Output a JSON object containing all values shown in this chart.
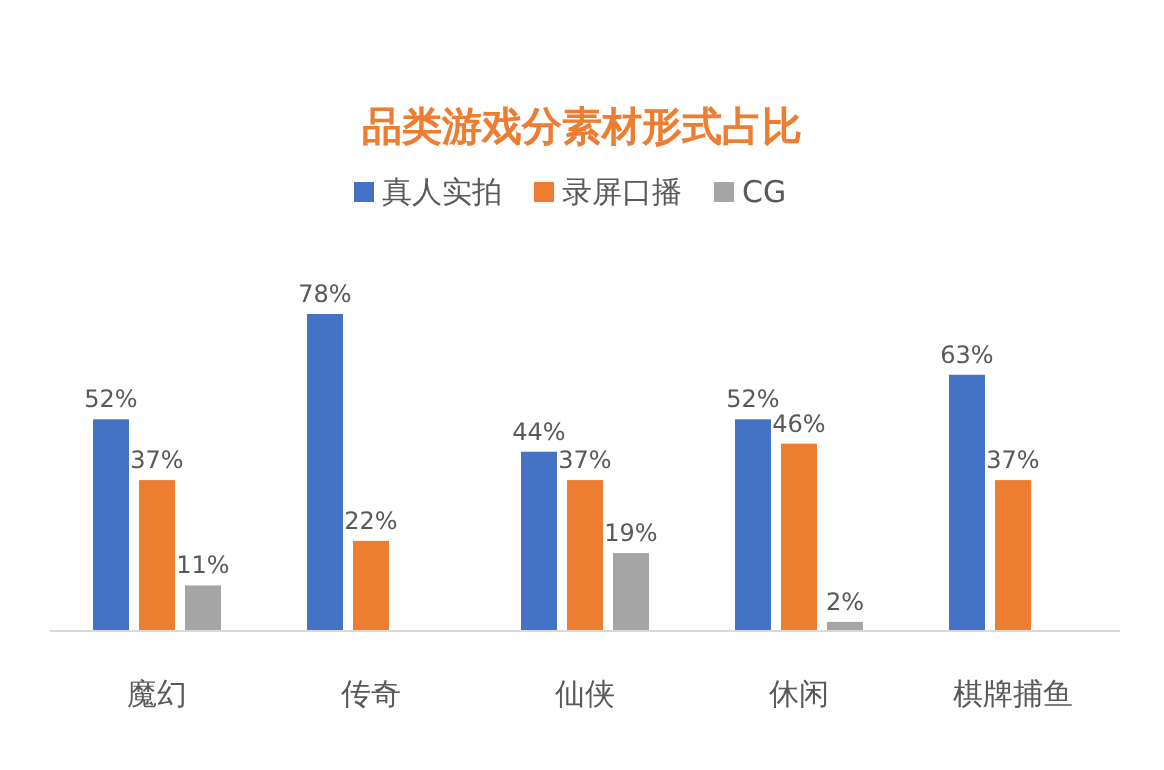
{
  "chart_data": {
    "type": "bar",
    "title": "品类游戏分素材形式占比",
    "categories": [
      "魔幻",
      "传奇",
      "仙侠",
      "休闲",
      "棋牌捕鱼"
    ],
    "relative": false,
    "legend": "top",
    "series": [
      {
        "name": "真人实拍",
        "color": "#4472c4",
        "values": [
          52,
          78,
          44,
          52,
          63
        ],
        "value_labels": [
          "52%",
          "78%",
          "44%",
          "52%",
          "63%"
        ]
      },
      {
        "name": "录屏口播",
        "color": "#ed7d31",
        "values": [
          37,
          22,
          37,
          46,
          37
        ],
        "value_labels": [
          "37%",
          "22%",
          "37%",
          "46%",
          "37%"
        ]
      },
      {
        "name": "CG",
        "color": "#a5a5a5",
        "values": [
          11,
          null,
          19,
          2,
          null
        ],
        "value_labels": [
          "11%",
          null,
          "19%",
          "2%",
          null
        ]
      }
    ]
  }
}
